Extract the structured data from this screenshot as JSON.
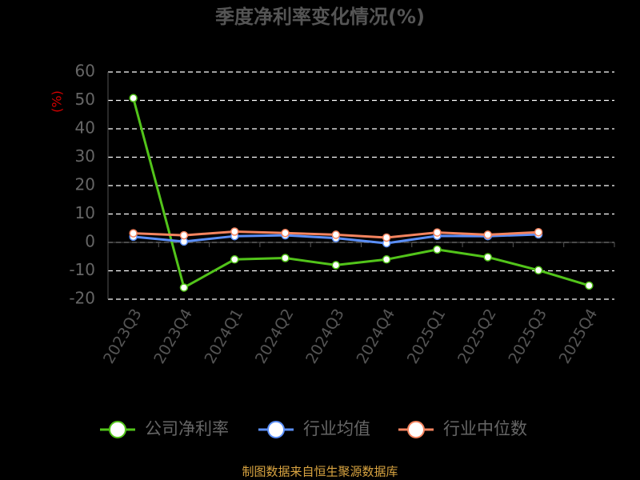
{
  "chart_data": {
    "type": "line",
    "title": "季度净利率变化情况(%)",
    "y_label": "(%)",
    "categories": [
      "2023Q3",
      "2023Q4",
      "2024Q1",
      "2024Q2",
      "2024Q3",
      "2024Q4",
      "2025Q1",
      "2025Q2",
      "2025Q3",
      "2025Q4"
    ],
    "series": [
      {
        "name": "公司净利率",
        "color": "#52c41a",
        "values": [
          50.8,
          -15.9,
          -6,
          -5.5,
          -8,
          -6,
          -2.5,
          -5.2,
          -9.8,
          -15.2
        ]
      },
      {
        "name": "行业均值",
        "color": "#5b8ff9",
        "values": [
          2,
          0.3,
          2.2,
          2.5,
          1.5,
          -0.3,
          2.3,
          2.2,
          2.8,
          null
        ]
      },
      {
        "name": "行业中位数",
        "color": "#f4845f",
        "values": [
          3.2,
          2.5,
          3.8,
          3.3,
          2.7,
          1.7,
          3.5,
          2.7,
          3.6,
          null
        ]
      }
    ],
    "ylim": [
      -20,
      60
    ],
    "yticks": [
      -20,
      -10,
      0,
      10,
      20,
      30,
      40,
      50,
      60
    ],
    "grid": true,
    "source": "制图数据来自恒生聚源数据库"
  }
}
